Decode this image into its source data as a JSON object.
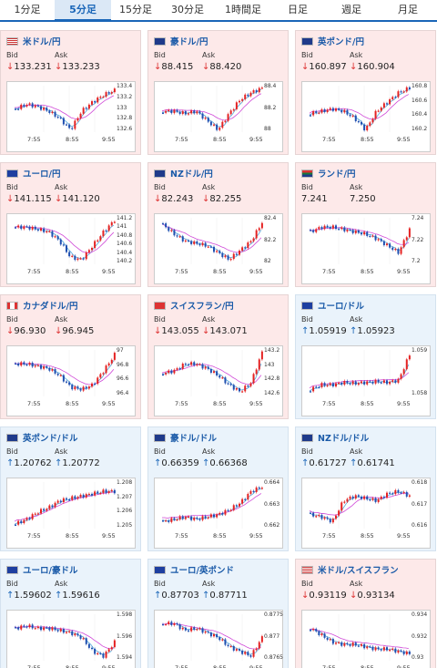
{
  "tabs": [
    {
      "label": "1分足",
      "active": false
    },
    {
      "label": "5分足",
      "active": true
    },
    {
      "label": "15分足",
      "active": false
    },
    {
      "label": "30分足",
      "active": false
    },
    {
      "label": "1時間足",
      "active": false
    },
    {
      "label": "日足",
      "active": false
    },
    {
      "label": "週足",
      "active": false
    },
    {
      "label": "月足",
      "active": false
    }
  ],
  "bid_label": "Bid",
  "ask_label": "Ask",
  "x_ticks": [
    "7:55",
    "8:55",
    "9:55"
  ],
  "colors": {
    "up_candle": "#e52222",
    "down_candle": "#1f4fb0",
    "ma1": "#d04ad8",
    "ma2": "#55aadd",
    "down_arrow": "#dd3333",
    "up_arrow": "#1a66b8"
  },
  "cards": [
    {
      "pair": "米ドル/円",
      "flag": "us",
      "dir": "down",
      "bid": "133.231",
      "ask": "133.233",
      "y_ticks": [
        "133.4",
        "133.2",
        "133",
        "132.8",
        "132.6"
      ],
      "shape": [
        0.5,
        0.4,
        0.45,
        0.55,
        0.7,
        0.95,
        0.55,
        0.35,
        0.2,
        0.1
      ]
    },
    {
      "pair": "豪ドル/円",
      "flag": "au",
      "dir": "down",
      "bid": "88.415",
      "ask": "88.420",
      "y_ticks": [
        "88.4",
        "88.2",
        "88"
      ],
      "shape": [
        0.55,
        0.55,
        0.6,
        0.55,
        0.75,
        0.95,
        0.6,
        0.3,
        0.15,
        0.05
      ]
    },
    {
      "pair": "英ポンド/円",
      "flag": "gb",
      "dir": "down",
      "bid": "160.897",
      "ask": "160.904",
      "y_ticks": [
        "160.8",
        "160.6",
        "160.4",
        "160.2"
      ],
      "shape": [
        0.6,
        0.55,
        0.5,
        0.55,
        0.7,
        0.95,
        0.55,
        0.35,
        0.15,
        0.05
      ]
    },
    {
      "pair": "ユーロ/円",
      "flag": "eu",
      "dir": "down",
      "bid": "141.115",
      "ask": "141.120",
      "y_ticks": [
        "141.2",
        "141",
        "140.8",
        "140.6",
        "140.4",
        "140.2"
      ],
      "shape": [
        0.2,
        0.2,
        0.25,
        0.3,
        0.5,
        0.85,
        0.9,
        0.6,
        0.3,
        0.05
      ]
    },
    {
      "pair": "NZドル/円",
      "flag": "nz",
      "dir": "down",
      "bid": "82.243",
      "ask": "82.255",
      "y_ticks": [
        "82.4",
        "82.2",
        "82"
      ],
      "shape": [
        0.15,
        0.35,
        0.5,
        0.55,
        0.6,
        0.75,
        0.9,
        0.7,
        0.5,
        0.1
      ]
    },
    {
      "pair": "ランド/円",
      "flag": "za",
      "dir": "none",
      "bid": "7.241",
      "ask": "7.250",
      "y_ticks": [
        "7.24",
        "7.22",
        "7.2"
      ],
      "shape": [
        0.3,
        0.2,
        0.2,
        0.25,
        0.3,
        0.35,
        0.45,
        0.6,
        0.75,
        0.25
      ]
    },
    {
      "pair": "カナダドル/円",
      "flag": "ca",
      "dir": "down",
      "bid": "96.930",
      "ask": "96.945",
      "y_ticks": [
        "97",
        "96.8",
        "96.6",
        "96.4"
      ],
      "shape": [
        0.3,
        0.3,
        0.35,
        0.4,
        0.55,
        0.8,
        0.85,
        0.75,
        0.45,
        0.1
      ]
    },
    {
      "pair": "スイスフラン/円",
      "flag": "ch",
      "dir": "down",
      "bid": "143.055",
      "ask": "143.071",
      "y_ticks": [
        "143.2",
        "143",
        "142.8",
        "142.6"
      ],
      "shape": [
        0.5,
        0.45,
        0.3,
        0.3,
        0.4,
        0.55,
        0.75,
        0.9,
        0.7,
        0.05
      ]
    },
    {
      "pair": "ユーロ/ドル",
      "flag": "eu",
      "dir": "up",
      "bid": "1.05919",
      "ask": "1.05923",
      "y_ticks": [
        "1.059",
        "1.058"
      ],
      "shape": [
        0.85,
        0.75,
        0.75,
        0.7,
        0.72,
        0.7,
        0.68,
        0.7,
        0.65,
        0.1
      ]
    },
    {
      "pair": "英ポンド/ドル",
      "flag": "gb",
      "dir": "up",
      "bid": "1.20762",
      "ask": "1.20772",
      "y_ticks": [
        "1.208",
        "1.207",
        "1.206",
        "1.205"
      ],
      "shape": [
        0.9,
        0.8,
        0.65,
        0.55,
        0.4,
        0.35,
        0.3,
        0.25,
        0.2,
        0.2
      ]
    },
    {
      "pair": "豪ドル/ドル",
      "flag": "au",
      "dir": "up",
      "bid": "0.66359",
      "ask": "0.66368",
      "y_ticks": [
        "0.664",
        "0.663",
        "0.662"
      ],
      "shape": [
        0.85,
        0.8,
        0.75,
        0.8,
        0.75,
        0.7,
        0.6,
        0.45,
        0.2,
        0.1
      ]
    },
    {
      "pair": "NZドル/ドル",
      "flag": "nz",
      "dir": "up",
      "bid": "0.61727",
      "ask": "0.61741",
      "y_ticks": [
        "0.618",
        "0.617",
        "0.616"
      ],
      "shape": [
        0.7,
        0.75,
        0.85,
        0.4,
        0.3,
        0.35,
        0.4,
        0.25,
        0.2,
        0.3
      ]
    },
    {
      "pair": "ユーロ/豪ドル",
      "flag": "eu",
      "dir": "up",
      "bid": "1.59602",
      "ask": "1.59616",
      "y_ticks": [
        "1.598",
        "1.596",
        "1.594"
      ],
      "shape": [
        0.3,
        0.25,
        0.3,
        0.3,
        0.35,
        0.4,
        0.5,
        0.8,
        0.9,
        0.6
      ]
    },
    {
      "pair": "ユーロ/英ポンド",
      "flag": "eu",
      "dir": "up",
      "bid": "0.87703",
      "ask": "0.87711",
      "y_ticks": [
        "0.8775",
        "0.877",
        "0.8765"
      ],
      "shape": [
        0.2,
        0.2,
        0.35,
        0.3,
        0.4,
        0.5,
        0.7,
        0.8,
        0.9,
        0.5
      ]
    },
    {
      "pair": "米ドル/スイスフラン",
      "flag": "us",
      "dir": "down",
      "bid": "0.93119",
      "ask": "0.93134",
      "y_ticks": [
        "0.934",
        "0.932",
        "0.93"
      ],
      "shape": [
        0.3,
        0.45,
        0.6,
        0.65,
        0.65,
        0.7,
        0.75,
        0.75,
        0.8,
        0.85
      ]
    }
  ]
}
